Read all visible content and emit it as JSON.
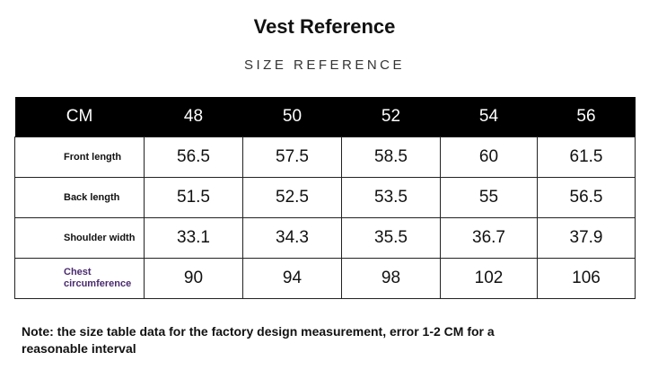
{
  "header": {
    "title": "Vest Reference",
    "subtitle": "SIZE REFERENCE"
  },
  "table": {
    "columns": [
      "CM",
      "48",
      "50",
      "52",
      "54",
      "56"
    ],
    "rows": [
      [
        "Front length",
        "56.5",
        "57.5",
        "58.5",
        "60",
        "61.5"
      ],
      [
        "Back length",
        "51.5",
        "52.5",
        "53.5",
        "55",
        "56.5"
      ],
      [
        "Shoulder width",
        "33.1",
        "34.3",
        "35.5",
        "36.7",
        "37.9"
      ],
      [
        "Chest circumference",
        "90",
        "94",
        "98",
        "102",
        "106"
      ]
    ]
  },
  "note": "Note: the size table data for the factory design measurement, error 1-2 CM for a reasonable interval"
}
